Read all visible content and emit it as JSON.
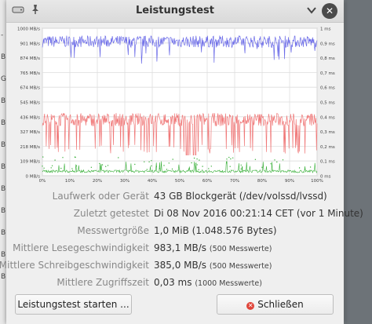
{
  "window": {
    "title": "Leistungstest"
  },
  "chart_data": {
    "type": "line",
    "y_left_ticks": [
      "1000 MB/s",
      "901 MB/s",
      "874 MB/s",
      "765 MB/s",
      "674 MB/s",
      "545 MB/s",
      "436 MB/s",
      "327 MB/s",
      "218 MB/s",
      "109 MB/s",
      "0 MB/s"
    ],
    "y_right_ticks": [
      "1 ms",
      "0,9 ms",
      "0,8 ms",
      "0,7 ms",
      "0,6 ms",
      "0,5 ms",
      "0,4 ms",
      "0,3 ms",
      "0,2 ms",
      "0,1 ms",
      "0 ms"
    ],
    "x_ticks": [
      "0%",
      "10%",
      "20%",
      "30%",
      "40%",
      "50%",
      "60%",
      "70%",
      "80%",
      "90%",
      "100%"
    ],
    "grid": true,
    "series": [
      {
        "color": "#6b6be8"
      },
      {
        "color": "#f07878"
      },
      {
        "color": "#3ab03a"
      }
    ]
  },
  "info": [
    {
      "label": "Laufwerk oder Gerät",
      "value": "43 GB Blockgerät (/dev/volssd/lvssd)",
      "note": ""
    },
    {
      "label": "Zuletzt getestet",
      "value": "Di 08 Nov 2016 00:21:14 CET (vor 1 Minute)",
      "note": ""
    },
    {
      "label": "Messwertgröße",
      "value": "1,0 MiB (1.048.576 Bytes)",
      "note": ""
    },
    {
      "label": "Mittlere Lesegeschwindigkeit",
      "value": "983,1 MB/s",
      "note": "(500 Messwerte)"
    },
    {
      "label": "Mittlere Schreibgeschwindigkeit",
      "value": "385,0 MB/s",
      "note": "(500 Messwerte)"
    },
    {
      "label": "Mittlere Zugriffszeit",
      "value": "0,03 ms",
      "note": "(1000 Messwerte)"
    }
  ],
  "buttons": {
    "start": "Leistungstest starten ...",
    "close": "Schließen"
  },
  "background": {
    "letters": [
      "-",
      "B",
      "G",
      "B",
      "B",
      "B",
      "B",
      "B",
      "B",
      "B",
      "B",
      "B"
    ]
  },
  "icons": {
    "app": "disk-icon",
    "pin": "pin-icon",
    "menu": "chevron-down-icon",
    "close": "close-icon",
    "close_button": "close-circle-icon"
  }
}
